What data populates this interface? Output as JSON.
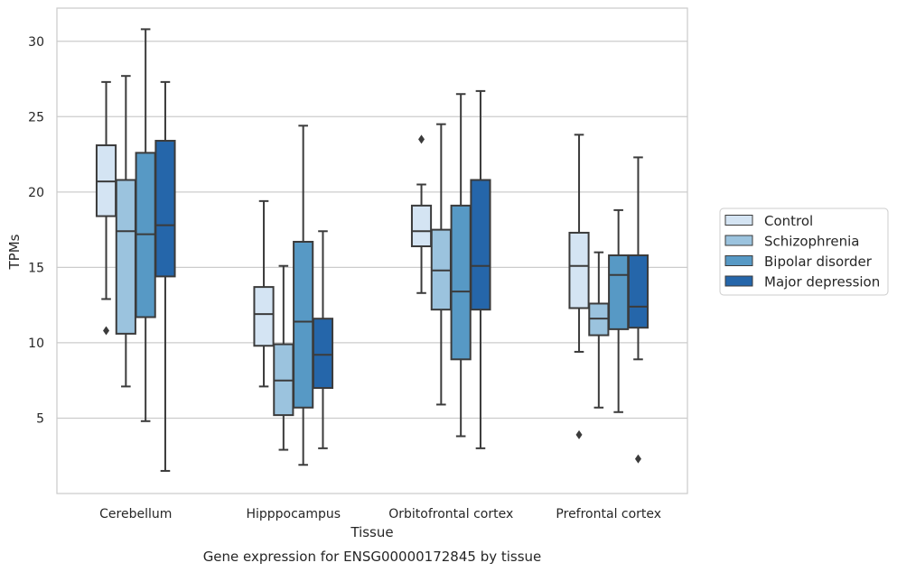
{
  "chart_data": {
    "type": "box",
    "caption": "Gene expression for ENSG00000172845 by tissue",
    "xlabel": "Tissue",
    "ylabel": "TPMs",
    "ylim": [
      0,
      32.2
    ],
    "yticks": [
      5,
      10,
      15,
      20,
      25,
      30
    ],
    "grid": "horizontal",
    "legend_position": "right-outside",
    "categories": [
      "Cerebellum",
      "Hipppocampus",
      "Orbitofrontal cortex",
      "Prefrontal cortex"
    ],
    "series": [
      {
        "name": "Control",
        "color": "#d4e4f3",
        "boxes": [
          {
            "whislo": 12.9,
            "q1": 18.4,
            "med": 20.7,
            "q3": 23.1,
            "whishi": 27.3,
            "fliers": [
              10.8
            ]
          },
          {
            "whislo": 7.1,
            "q1": 9.8,
            "med": 11.9,
            "q3": 13.7,
            "whishi": 19.4,
            "fliers": []
          },
          {
            "whislo": 13.3,
            "q1": 16.4,
            "med": 17.4,
            "q3": 19.1,
            "whishi": 20.5,
            "fliers": [
              23.5
            ]
          },
          {
            "whislo": 9.4,
            "q1": 12.3,
            "med": 15.1,
            "q3": 17.3,
            "whishi": 23.8,
            "fliers": [
              3.9
            ]
          }
        ]
      },
      {
        "name": "Schizophrenia",
        "color": "#9bc3de",
        "boxes": [
          {
            "whislo": 7.1,
            "q1": 10.6,
            "med": 17.4,
            "q3": 20.8,
            "whishi": 27.7,
            "fliers": []
          },
          {
            "whislo": 2.9,
            "q1": 5.2,
            "med": 7.5,
            "q3": 9.9,
            "whishi": 15.1,
            "fliers": []
          },
          {
            "whislo": 5.9,
            "q1": 12.2,
            "med": 14.8,
            "q3": 17.5,
            "whishi": 24.5,
            "fliers": []
          },
          {
            "whislo": 5.7,
            "q1": 10.5,
            "med": 11.6,
            "q3": 12.6,
            "whishi": 16.0,
            "fliers": []
          }
        ]
      },
      {
        "name": "Bipolar disorder",
        "color": "#5799c5",
        "boxes": [
          {
            "whislo": 4.8,
            "q1": 11.7,
            "med": 17.2,
            "q3": 22.6,
            "whishi": 30.8,
            "fliers": []
          },
          {
            "whislo": 1.9,
            "q1": 5.7,
            "med": 11.4,
            "q3": 16.7,
            "whishi": 24.4,
            "fliers": []
          },
          {
            "whislo": 3.8,
            "q1": 8.9,
            "med": 13.4,
            "q3": 19.1,
            "whishi": 26.5,
            "fliers": []
          },
          {
            "whislo": 5.4,
            "q1": 10.9,
            "med": 14.5,
            "q3": 15.8,
            "whishi": 18.8,
            "fliers": []
          }
        ]
      },
      {
        "name": "Major depression",
        "color": "#2566aa",
        "boxes": [
          {
            "whislo": 1.5,
            "q1": 14.4,
            "med": 17.8,
            "q3": 23.4,
            "whishi": 27.3,
            "fliers": []
          },
          {
            "whislo": 3.0,
            "q1": 7.0,
            "med": 9.2,
            "q3": 11.6,
            "whishi": 17.4,
            "fliers": []
          },
          {
            "whislo": 3.0,
            "q1": 12.2,
            "med": 15.1,
            "q3": 20.8,
            "whishi": 26.7,
            "fliers": []
          },
          {
            "whislo": 8.9,
            "q1": 11.0,
            "med": 12.4,
            "q3": 15.8,
            "whishi": 22.3,
            "fliers": [
              2.3
            ]
          }
        ]
      }
    ]
  }
}
